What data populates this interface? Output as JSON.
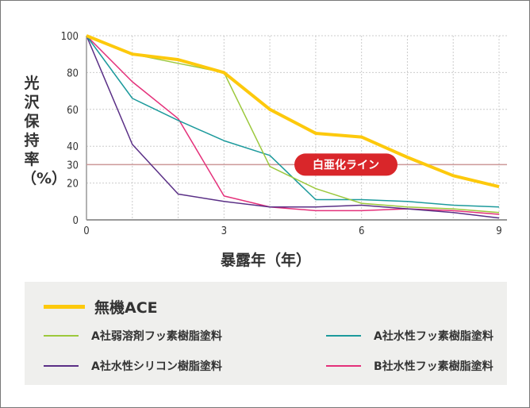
{
  "chart_data": {
    "type": "line",
    "xlabel": "暴露年（年）",
    "ylabel": "光沢保持率（%）",
    "x": [
      0,
      1,
      2,
      3,
      4,
      5,
      6,
      7,
      8,
      9
    ],
    "xticks": [
      "0",
      "3",
      "6",
      "9"
    ],
    "yticks": [
      "0",
      "20",
      "30",
      "40",
      "60",
      "80",
      "100"
    ],
    "xlim": [
      0,
      9
    ],
    "ylim": [
      0,
      100
    ],
    "grid": true,
    "reference_line": {
      "value": 30,
      "label": "白亜化ライン",
      "color": "#d9262a"
    },
    "legend_position": "bottom",
    "series": [
      {
        "name": "無機ACE",
        "color": "#fdc90c",
        "values": [
          100,
          90,
          87,
          80,
          60,
          47,
          45,
          34,
          24,
          18
        ]
      },
      {
        "name": "A社弱溶剤フッ素樹脂塗料",
        "color": "#9cc83c",
        "values": [
          100,
          90,
          85,
          80,
          29,
          17,
          9,
          7,
          6,
          4
        ]
      },
      {
        "name": "A社水性フッ素樹脂塗料",
        "color": "#1c9a9c",
        "values": [
          100,
          66,
          54,
          43,
          35,
          11,
          11,
          10,
          8,
          7
        ]
      },
      {
        "name": "A社水性シリコン樹脂塗料",
        "color": "#5a2f86",
        "values": [
          100,
          41,
          14,
          10,
          7,
          7,
          8,
          6,
          4,
          1
        ]
      },
      {
        "name": "B社水性フッ素樹脂塗料",
        "color": "#e4307a",
        "values": [
          100,
          75,
          55,
          13,
          7,
          5,
          5,
          6,
          5,
          3
        ]
      }
    ]
  }
}
